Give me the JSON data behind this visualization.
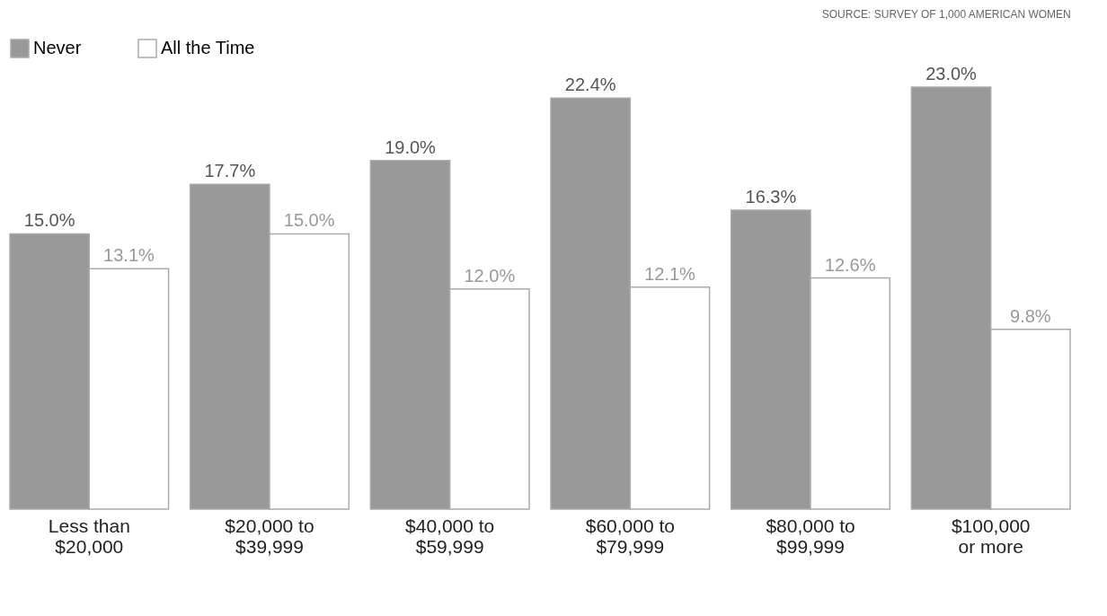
{
  "chart_data": {
    "type": "bar",
    "categories": [
      "Less than\n$20,000",
      "$20,000 to\n$39,999",
      "$40,000 to\n$59,999",
      "$60,000 to\n$79,999",
      "$80,000 to\n$99,999",
      "$100,000\nor more"
    ],
    "series": [
      {
        "name": "Never",
        "color": "#999999",
        "values": [
          15.0,
          17.7,
          19.0,
          22.4,
          16.3,
          23.0
        ],
        "value_labels": [
          "15.0%",
          "17.7%",
          "19.0%",
          "22.4%",
          "16.3%",
          "23.0%"
        ]
      },
      {
        "name": "All the Time",
        "color": "#ffffff",
        "values": [
          13.1,
          15.0,
          12.0,
          12.1,
          12.6,
          9.8
        ],
        "value_labels": [
          "13.1%",
          "15.0%",
          "12.0%",
          "12.1%",
          "12.6%",
          "9.8%"
        ]
      }
    ],
    "legend": "top",
    "grid": false,
    "annotations": [
      "SOURCE: SURVEY OF 1,000 AMERICAN WOMEN"
    ]
  }
}
